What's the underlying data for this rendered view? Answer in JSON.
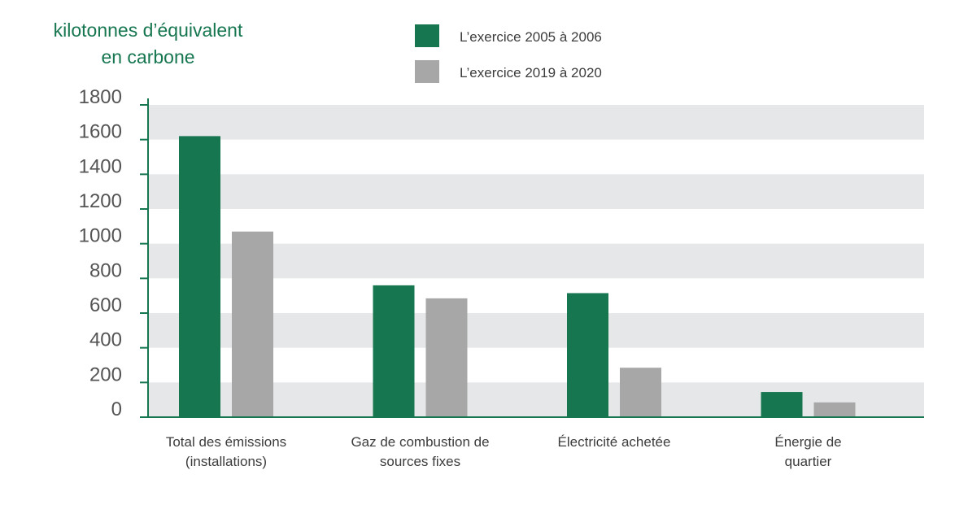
{
  "chart_data": {
    "type": "bar",
    "title": "",
    "ylabel": [
      "kilotonnes d’équivalent",
      "en carbone"
    ],
    "xlabel": "",
    "ylim": [
      0,
      1800
    ],
    "yticks": [
      0,
      200,
      400,
      600,
      800,
      1000,
      1200,
      1400,
      1600,
      1800
    ],
    "categories": [
      [
        "Total des émissions",
        "(installations)"
      ],
      [
        "Gaz de combustion de",
        "sources fixes"
      ],
      [
        "Électricité achetée"
      ],
      [
        "Énergie de",
        "quartier"
      ]
    ],
    "series": [
      {
        "name": "L’exercice 2005 à 2006",
        "color": "#167650",
        "values": [
          1620,
          760,
          715,
          145
        ]
      },
      {
        "name": "L’exercice 2019 à 2020",
        "color": "#a6a7a6",
        "values": [
          1070,
          685,
          285,
          85
        ]
      }
    ],
    "legend_position": "top",
    "grid": "alternating horizontal bands",
    "band_color": "#e6e7e8",
    "axis_color": "#167650"
  }
}
